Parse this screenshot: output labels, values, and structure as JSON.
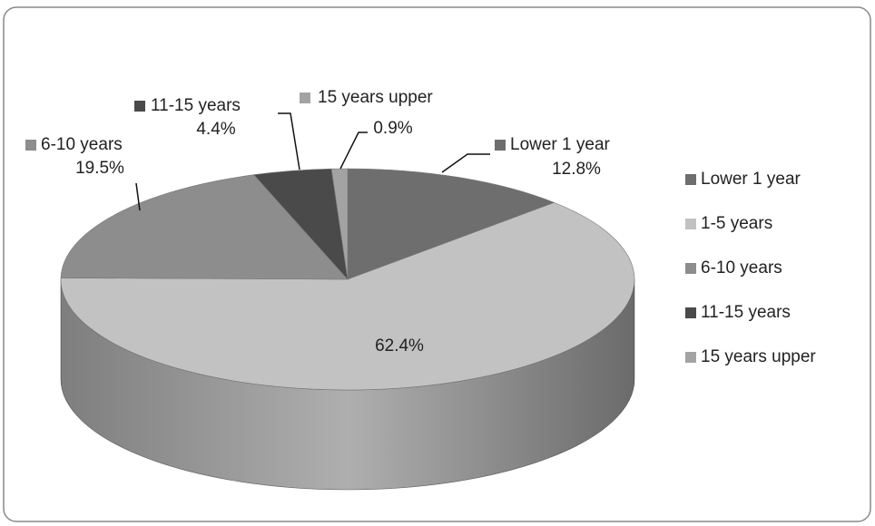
{
  "chart_data": {
    "type": "pie",
    "categories": [
      "Lower 1 year",
      "1-5 years",
      "6-10 years",
      "11-15 years",
      "15 years upper"
    ],
    "values": [
      12.8,
      62.4,
      19.5,
      4.4,
      0.9
    ],
    "value_labels": [
      "12.8%",
      "62.4%",
      "19.5%",
      "4.4%",
      "0.9%"
    ],
    "colors": [
      "#6e6e6e",
      "#c2c2c2",
      "#8d8d8d",
      "#4a4a4a",
      "#a3a3a3"
    ],
    "legend": "right"
  }
}
